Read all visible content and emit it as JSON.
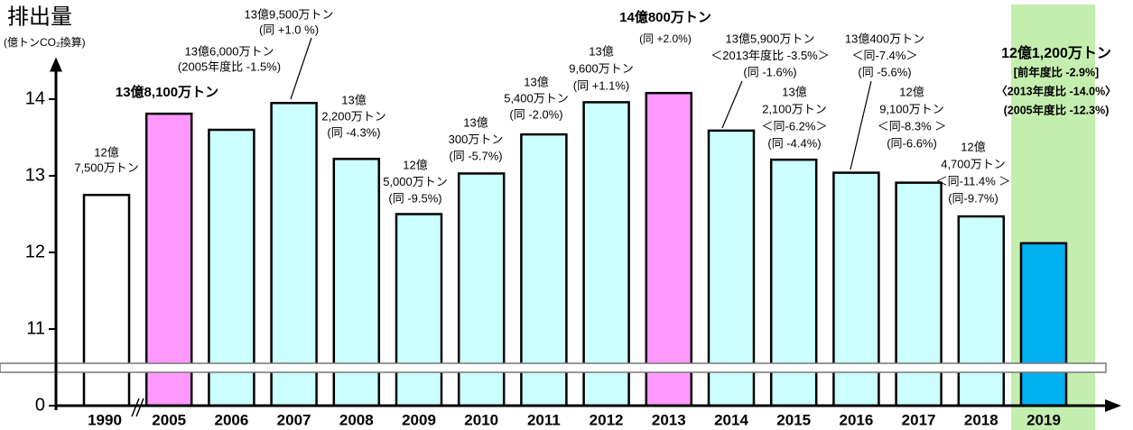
{
  "chart_data": {
    "type": "bar",
    "title": "排出量",
    "subtitle": "(億トンCO₂換算)",
    "categories": [
      "1990",
      "2005",
      "2006",
      "2007",
      "2008",
      "2009",
      "2010",
      "2011",
      "2012",
      "2013",
      "2014",
      "2015",
      "2016",
      "2017",
      "2018",
      "2019"
    ],
    "values": [
      12.75,
      13.81,
      13.6,
      13.95,
      13.22,
      12.5,
      13.03,
      13.54,
      13.96,
      14.08,
      13.59,
      13.21,
      13.04,
      12.91,
      12.47,
      12.12
    ],
    "colors": [
      "#ffffff",
      "#ff99ff",
      "#ccffff",
      "#ccffff",
      "#ccffff",
      "#ccffff",
      "#ccffff",
      "#ccffff",
      "#ccffff",
      "#ff99ff",
      "#ccffff",
      "#ccffff",
      "#ccffff",
      "#ccffff",
      "#ccffff",
      "#00b0f0"
    ],
    "value_labels": [
      [
        "12億",
        "7,500万トン"
      ],
      [
        "13億8,100万トン"
      ],
      [
        "13億6,000万トン",
        "(2005年度比 -1.5%)"
      ],
      [
        "13億9,500万トン",
        "(同 +1.0 %)"
      ],
      [
        "13億",
        "2,200万トン",
        "(同 -4.3%)"
      ],
      [
        "12億",
        "5,000万トン",
        "(同 -9.5%)"
      ],
      [
        "13億",
        "300万トン",
        "(同 -5.7%)"
      ],
      [
        "13億",
        "5,400万トン",
        "(同 -2.0%)"
      ],
      [
        "13億",
        "9,600万トン",
        "(同 +1.1%)"
      ],
      [
        "14億800万トン",
        "(同 +2.0%)"
      ],
      [
        "13億5,900万トン",
        "＜2013年度比 -3.5%＞",
        "(同 -1.6%)"
      ],
      [
        "13億",
        "2,100万トン",
        "＜同-6.2%＞",
        "(同 -4.4%)"
      ],
      [
        "13億400万トン",
        "＜同-7.4%＞",
        "(同 -5.6%)"
      ],
      [
        "12億",
        "9,100万トン",
        "＜同-8.3% ＞",
        "(同-6.6%)"
      ],
      [
        "12億",
        "4,700万トン",
        "＜同-11.4% ＞",
        "(同-9.7%)"
      ],
      [
        "12億1,200万トン",
        "[前年度比 -2.9%]",
        "〈2013年度比 -14.0%〉",
        "(2005年度比 -12.3%)"
      ]
    ],
    "ylim": [
      0,
      14.5
    ],
    "yticks": [
      0,
      11,
      12,
      13,
      14
    ],
    "axis_break": true
  }
}
